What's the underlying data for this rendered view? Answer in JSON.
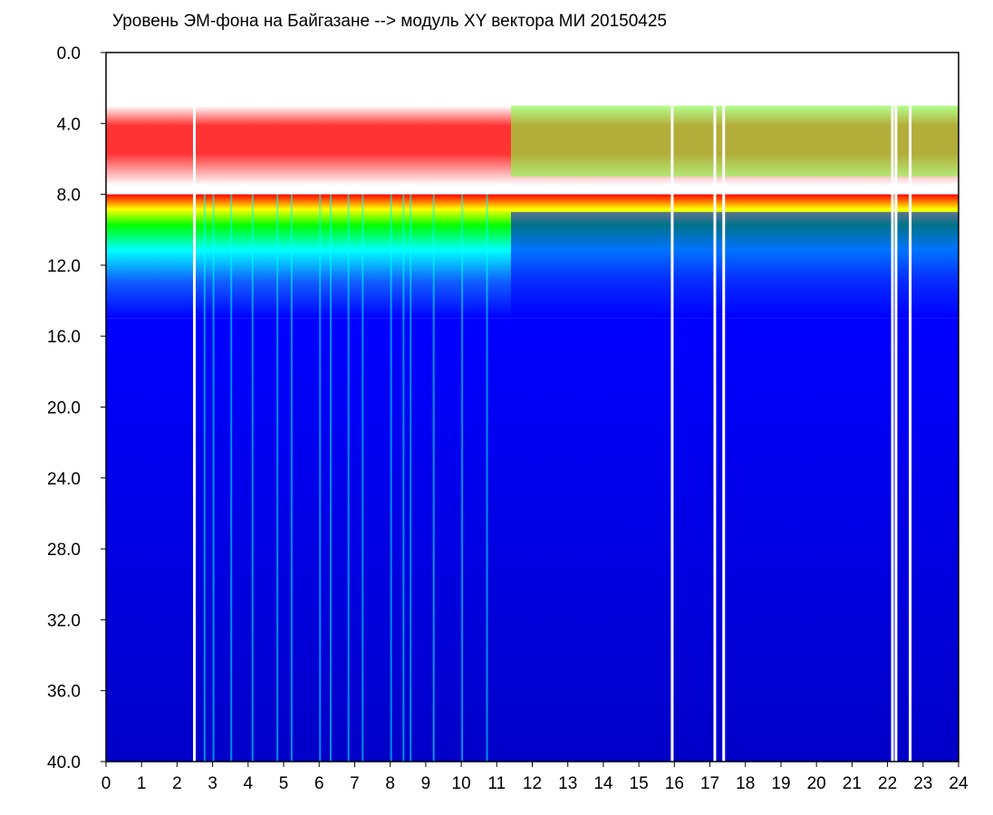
{
  "chart_data": {
    "type": "heatmap",
    "title": "Уровень ЭМ-фона на Байгазане   -->  модуль XY вектора МИ   20150425",
    "xlim": [
      0,
      24
    ],
    "ylim": [
      40,
      0
    ],
    "y_inverted": true,
    "x_ticks": [
      "0",
      "1",
      "2",
      "3",
      "4",
      "5",
      "6",
      "7",
      "8",
      "9",
      "10",
      "11",
      "12",
      "13",
      "14",
      "15",
      "16",
      "17",
      "18",
      "19",
      "20",
      "21",
      "22",
      "23",
      "24"
    ],
    "y_ticks": [
      "0.0",
      "4.0",
      "8.0",
      "12.0",
      "16.0",
      "20.0",
      "24.0",
      "28.0",
      "32.0",
      "36.0",
      "40.0"
    ],
    "grid": false,
    "colorscale": [
      "#ffffff",
      "#ff0000",
      "#ffff00",
      "#00ff00",
      "#00ffff",
      "#0000ff",
      "#0000c8"
    ],
    "bands": [
      {
        "name": "upper-noise",
        "y_from": 3.0,
        "y_to": 7.5,
        "x_from": 0.0,
        "x_to": 24.0
      },
      {
        "name": "main-band",
        "y_from": 8.0,
        "y_to": 15.0,
        "x_from": 0.0,
        "x_to": 24.0
      },
      {
        "name": "background",
        "y_from": 15.0,
        "y_to": 40.0,
        "x_from": 0.0,
        "x_to": 24.0
      }
    ],
    "gaps_x": [
      2.45,
      15.9,
      17.1,
      17.35,
      22.1,
      22.2,
      22.6
    ],
    "streaks_x": [
      2.75,
      3.0,
      3.5,
      4.1,
      4.8,
      5.2,
      6.0,
      6.3,
      6.8,
      7.2,
      8.0,
      8.35,
      8.55,
      9.2,
      10.0,
      10.7
    ]
  }
}
